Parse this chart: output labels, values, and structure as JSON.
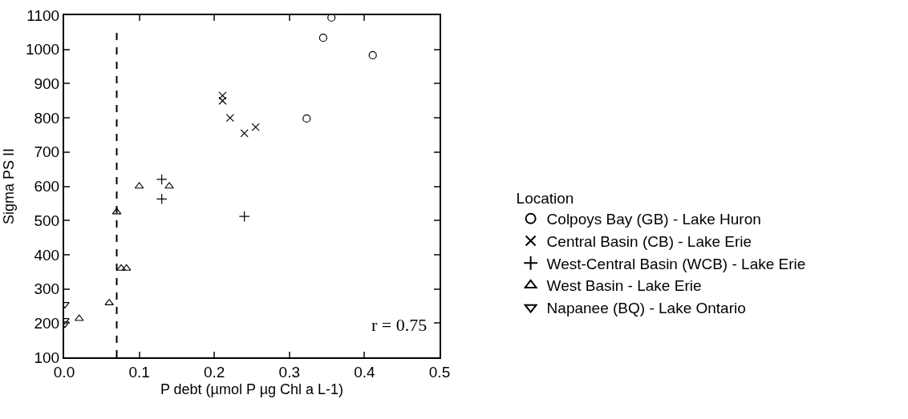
{
  "chart_data": {
    "type": "scatter",
    "xlabel": "P debt (µmol P µg Chl a L-1)",
    "ylabel": "Sigma PS II",
    "legend_title": "Location",
    "legend": "right",
    "grid": false,
    "xlim": [
      0,
      0.5
    ],
    "xticks": [
      {
        "value": 0,
        "label": "0.0"
      },
      0.1,
      0.2,
      0.3,
      0.4,
      0.5
    ],
    "ylim": [
      100,
      1100
    ],
    "yticks": [
      100,
      200,
      300,
      400,
      500,
      600,
      700,
      800,
      900,
      1000,
      1100
    ],
    "series": [
      {
        "name": "Colpoys Bay (GB) - Lake Huron",
        "color": "#000000",
        "marker": "circle",
        "x": [
          0.356,
          0.345,
          0.411,
          0.323
        ],
        "values": [
          1093,
          1034,
          983,
          798
        ]
      },
      {
        "name": "Central Basin (CB) - Lake Erie",
        "color": "#000000",
        "marker": "cross",
        "x": [
          0.211,
          0.211,
          0.221,
          0.24,
          0.255
        ],
        "values": [
          865,
          850,
          800,
          755,
          773
        ]
      },
      {
        "name": "West-Central Basin (WCB) - Lake Erie",
        "color": "#000000",
        "marker": "plus",
        "x": [
          0.13,
          0.13,
          0.24
        ],
        "values": [
          620,
          563,
          512
        ]
      },
      {
        "name": "West Basin - Lake Erie",
        "color": "#000000",
        "marker": "triangle",
        "x": [
          0.02,
          0.06,
          0.07,
          0.076,
          0.083,
          0.1,
          0.14
        ],
        "values": [
          213,
          259,
          525,
          360,
          360,
          600,
          600
        ]
      },
      {
        "name": "Napanee (BQ) - Lake Ontario",
        "color": "#000000",
        "marker": "triangle-down",
        "x": [
          0.001,
          0.001,
          0.001
        ],
        "values": [
          255,
          208,
          198
        ]
      }
    ],
    "ref_lines": [
      {
        "axis": "x",
        "value": 0.07,
        "color": "#000000",
        "line_style": "dashed"
      }
    ],
    "annotations": [
      "r = 0.75"
    ]
  }
}
